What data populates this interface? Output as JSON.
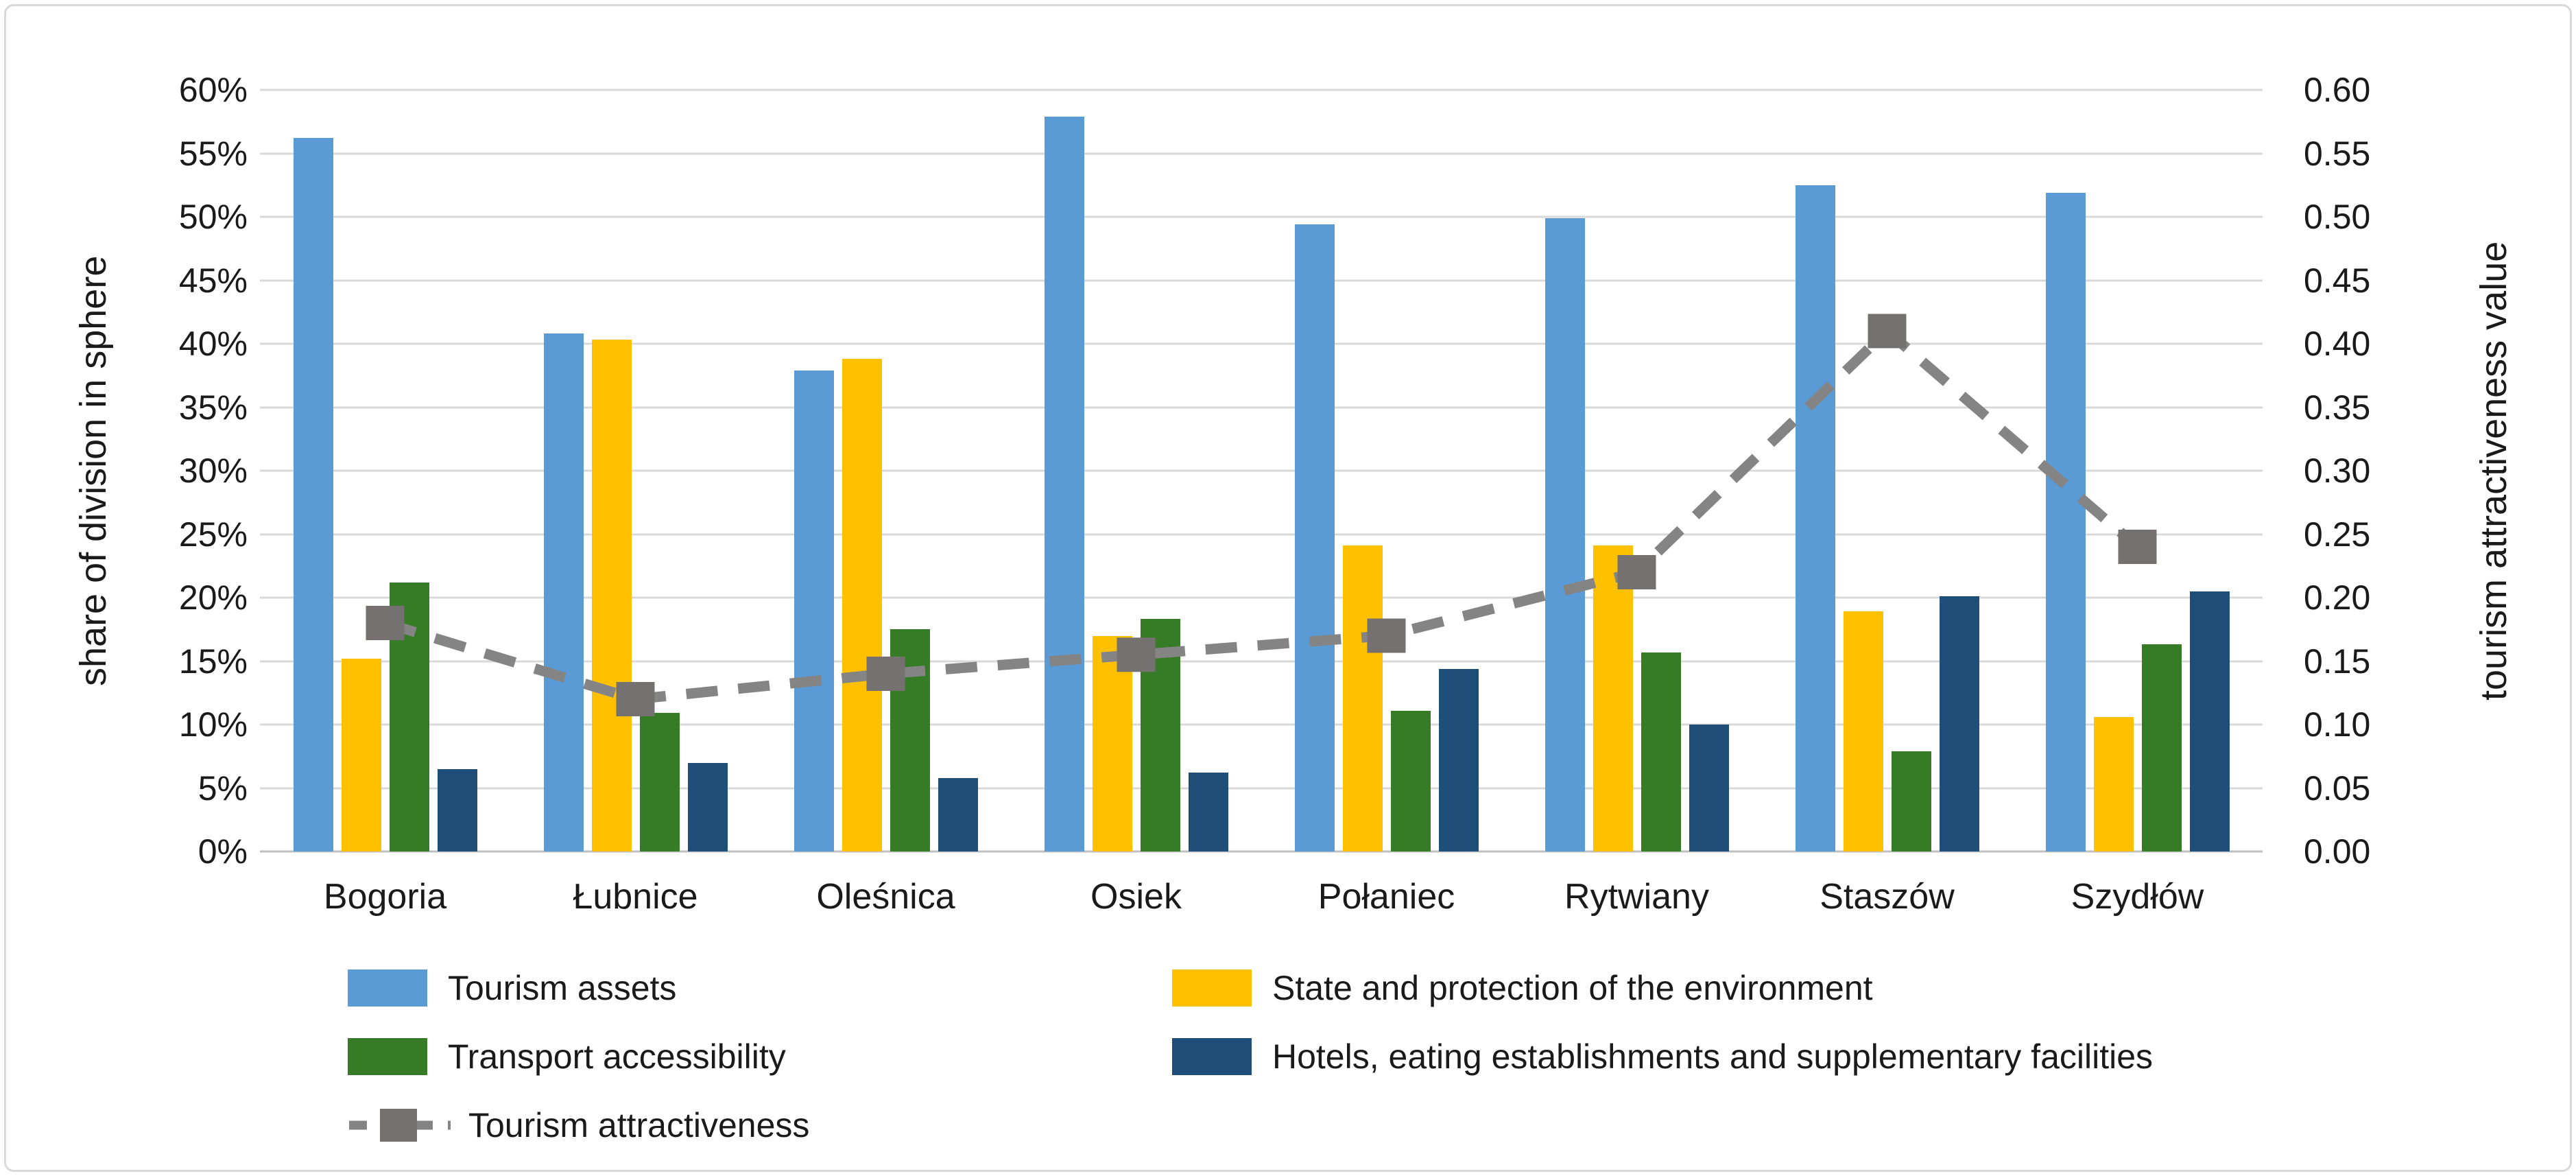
{
  "chart_data": {
    "type": "bar",
    "subtype": "grouped-bars-with-line-overlay",
    "title": "",
    "categories": [
      "Bogoria",
      "Łubnice",
      "Oleśnica",
      "Osiek",
      "Połaniec",
      "Rytwiany",
      "Staszów",
      "Szydłów"
    ],
    "left_axis": {
      "title": "share of division in sphere",
      "min": 0,
      "max": 60,
      "step": 5,
      "tick_labels": [
        "0%",
        "5%",
        "10%",
        "15%",
        "20%",
        "25%",
        "30%",
        "35%",
        "40%",
        "45%",
        "50%",
        "55%",
        "60%"
      ]
    },
    "right_axis": {
      "title": "tourism attractiveness value",
      "min": 0,
      "max": 0.6,
      "step": 0.05,
      "tick_labels": [
        "0.00",
        "0.05",
        "0.10",
        "0.15",
        "0.20",
        "0.25",
        "0.30",
        "0.35",
        "0.40",
        "0.45",
        "0.50",
        "0.55",
        "0.60"
      ]
    },
    "series": [
      {
        "name": "Tourism assets",
        "color": "#5B9BD5",
        "axis": "left",
        "values": [
          56.2,
          40.8,
          37.9,
          57.9,
          49.4,
          49.9,
          52.5,
          51.9
        ]
      },
      {
        "name": "State and protection of the environment",
        "color": "#FFC000",
        "axis": "left",
        "values": [
          15.2,
          40.3,
          38.8,
          17.0,
          24.1,
          24.1,
          18.9,
          10.6
        ]
      },
      {
        "name": "Transport accessibility",
        "color": "#367C26",
        "axis": "left",
        "values": [
          21.2,
          10.9,
          17.5,
          18.3,
          11.1,
          15.7,
          7.9,
          16.3
        ]
      },
      {
        "name": "Hotels, eating establishments and supplementary facilities",
        "color": "#1F4E79",
        "axis": "left",
        "values": [
          6.5,
          7.0,
          5.8,
          6.2,
          14.4,
          10.0,
          20.1,
          20.5
        ]
      }
    ],
    "line": {
      "name": "Tourism attractiveness",
      "color": "#848484",
      "marker_color": "#767171",
      "style": "dashed",
      "marker": "square",
      "axis": "right",
      "values": [
        0.18,
        0.12,
        0.14,
        0.155,
        0.17,
        0.22,
        0.41,
        0.24
      ]
    },
    "grid": true,
    "gridline_color": "#D9D9D9",
    "legend_position": "bottom"
  }
}
